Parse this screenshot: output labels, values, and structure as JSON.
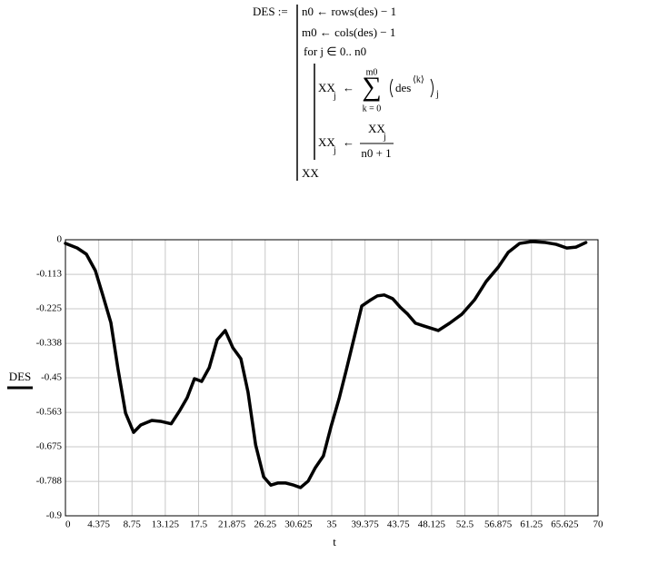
{
  "formula": {
    "assign": "DES :=",
    "lines": [
      "n0 ← rows(des) − 1",
      "m0 ← cols(des) − 1",
      "for  j ∈ 0.. n0"
    ],
    "sum": {
      "lhs": "XX",
      "lhs_sub": "j",
      "arrow": "←",
      "upper": "m0",
      "sigma": "∑",
      "lower": "k = 0",
      "body": "des",
      "sup": "⟨k⟩",
      "body_sub": "j"
    },
    "div": {
      "lhs": "XX",
      "lhs_sub": "j",
      "arrow": "←",
      "num": "XX",
      "num_sub": "j",
      "den": "n0 + 1"
    },
    "result": "XX"
  },
  "chart_data": {
    "type": "line",
    "y_label": "DES",
    "x_label": "t",
    "color": "#000000",
    "grid": true,
    "x": [
      0,
      1.55,
      2.75,
      3.94,
      4.9,
      5.97,
      6.9,
      7.9,
      8.96,
      9.9,
      11.35,
      12.5,
      13.9,
      15.05,
      16.0,
      16.96,
      17.9,
      18.9,
      19.95,
      21.0,
      22.0,
      23.06,
      24.0,
      25.0,
      26.05,
      27.0,
      27.96,
      28.9,
      30.0,
      30.9,
      31.9,
      32.85,
      33.9,
      34.9,
      36.0,
      36.9,
      38.0,
      38.95,
      40.0,
      41.0,
      41.9,
      43.0,
      43.97,
      45.0,
      46.0,
      47.1,
      49.0,
      50.5,
      52.1,
      53.8,
      55.3,
      56.9,
      58.2,
      59.7,
      61.3,
      63.1,
      64.5,
      65.9,
      67.1,
      68.4
    ],
    "values": [
      -0.012,
      -0.027,
      -0.047,
      -0.101,
      -0.18,
      -0.27,
      -0.42,
      -0.565,
      -0.628,
      -0.604,
      -0.589,
      -0.592,
      -0.6,
      -0.556,
      -0.515,
      -0.453,
      -0.462,
      -0.417,
      -0.326,
      -0.296,
      -0.352,
      -0.388,
      -0.497,
      -0.669,
      -0.773,
      -0.8,
      -0.793,
      -0.793,
      -0.8,
      -0.808,
      -0.787,
      -0.743,
      -0.705,
      -0.61,
      -0.515,
      -0.426,
      -0.314,
      -0.216,
      -0.198,
      -0.183,
      -0.18,
      -0.192,
      -0.219,
      -0.243,
      -0.272,
      -0.281,
      -0.296,
      -0.272,
      -0.243,
      -0.195,
      -0.136,
      -0.089,
      -0.041,
      -0.012,
      -0.006,
      -0.009,
      -0.015,
      -0.027,
      -0.024,
      -0.009
    ],
    "xlim": [
      0,
      70
    ],
    "ylim": [
      -0.9,
      0
    ],
    "xticks": [
      0,
      4.375,
      8.75,
      13.125,
      17.5,
      21.875,
      26.25,
      30.625,
      35,
      39.375,
      43.75,
      48.125,
      52.5,
      56.875,
      61.25,
      65.625,
      70
    ],
    "yticks": [
      0,
      -0.113,
      -0.225,
      -0.338,
      -0.45,
      -0.563,
      -0.675,
      -0.788,
      -0.9
    ]
  }
}
